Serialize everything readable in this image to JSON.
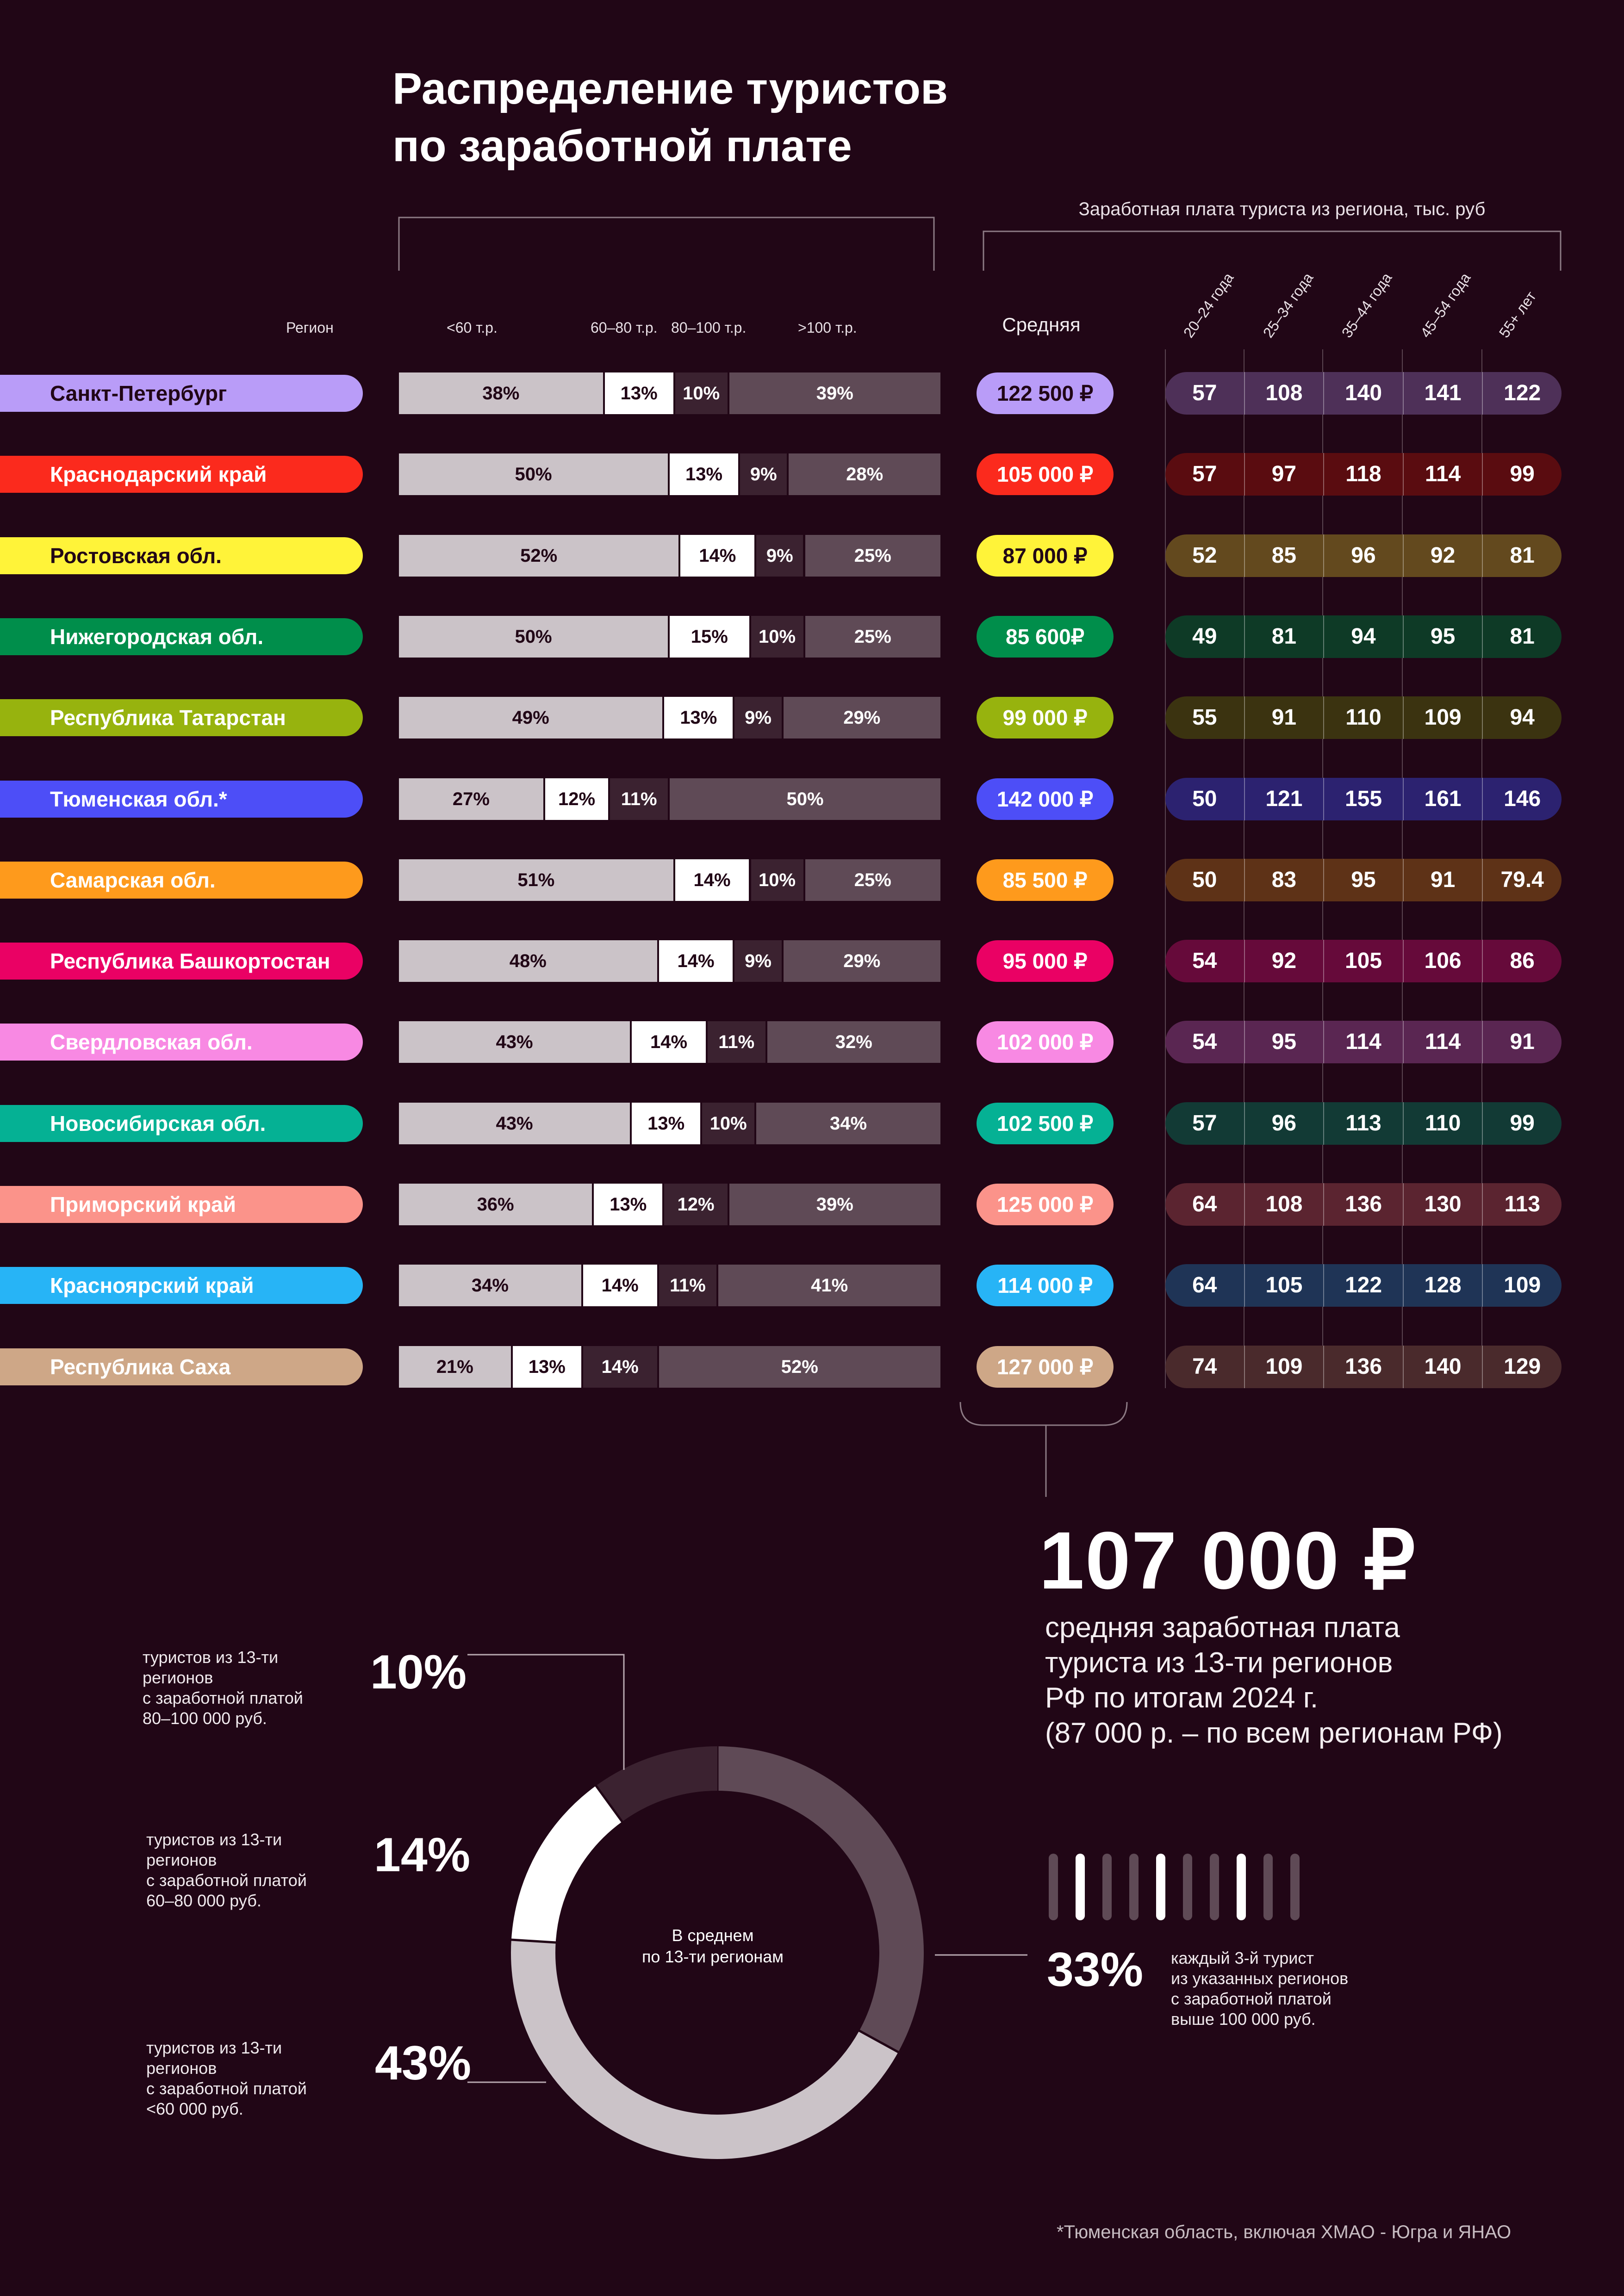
{
  "title": "Распределение туристов\nпо заработной плате",
  "header_salary": "Заработная плата туриста из региона, тыс. руб",
  "col_region": "Регион",
  "col_groups": [
    "<60 т.р.",
    "60–80 т.р.",
    "80–100 т.р.",
    ">100 т.р."
  ],
  "col_avg": "Средняя",
  "age_groups": [
    "20–24 года",
    "25–34 года",
    "35–44 года",
    "45–54 года",
    "55+ лет"
  ],
  "colors": {
    "background": "#210616",
    "seg_lt60": "#cbc3c8",
    "seg_60_80": "#ffffff",
    "seg_80_100": "#3b2230",
    "seg_gt100": "#5f4a56"
  },
  "chart_data": [
    {
      "type": "bar",
      "stacked": true,
      "orientation": "horizontal",
      "categories": [
        "Санкт-Петербург",
        "Краснодарский край",
        "Ростовская обл.",
        "Нижегородская обл.",
        "Республика Татарстан",
        "Тюменская обл.*",
        "Самарская обл.",
        "Республика Башкортостан",
        "Свердловская обл.",
        "Новосибирская обл.",
        "Приморский край",
        "Красноярский край",
        "Республика Саха"
      ],
      "series": [
        {
          "name": "<60 т.р.",
          "values": [
            38,
            50,
            52,
            50,
            49,
            27,
            51,
            48,
            43,
            43,
            36,
            34,
            21
          ]
        },
        {
          "name": "60–80 т.р.",
          "values": [
            13,
            13,
            14,
            15,
            13,
            12,
            14,
            14,
            14,
            13,
            13,
            14,
            13
          ]
        },
        {
          "name": "80–100 т.р.",
          "values": [
            10,
            9,
            9,
            10,
            9,
            11,
            10,
            9,
            11,
            10,
            12,
            11,
            14
          ]
        },
        {
          "name": ">100 т.р.",
          "values": [
            39,
            28,
            25,
            25,
            29,
            50,
            25,
            29,
            32,
            34,
            39,
            41,
            52
          ]
        }
      ],
      "unit": "%"
    },
    {
      "type": "table",
      "columns": [
        "Средняя",
        "20–24 года",
        "25–34 года",
        "35–44 года",
        "45–54 года",
        "55+ лет"
      ],
      "rows": [
        {
          "region": "Санкт-Петербург",
          "avg": "122 500 ₽",
          "ages": [
            "57",
            "108",
            "140",
            "141",
            "122"
          ],
          "color": "#b99cf8",
          "text_color": "#210616",
          "age_bg": "#4e3058"
        },
        {
          "region": "Краснодарский край",
          "avg": "105 000 ₽",
          "ages": [
            "57",
            "97",
            "118",
            "114",
            "99"
          ],
          "color": "#fb2a1d",
          "text_color": "#ffffff",
          "age_bg": "#5a0c10"
        },
        {
          "region": "Ростовская обл.",
          "avg": "87 000 ₽",
          "ages": [
            "52",
            "85",
            "96",
            "92",
            "81"
          ],
          "color": "#fff339",
          "text_color": "#210616",
          "age_bg": "#63491e"
        },
        {
          "region": "Нижегородская обл.",
          "avg": "85 600₽",
          "ages": [
            "49",
            "81",
            "94",
            "95",
            "81"
          ],
          "color": "#008e4b",
          "text_color": "#ffffff",
          "age_bg": "#0e3a26"
        },
        {
          "region": "Республика Татарстан",
          "avg": "99 000 ₽",
          "ages": [
            "55",
            "91",
            "110",
            "109",
            "94"
          ],
          "color": "#97b30e",
          "text_color": "#ffffff",
          "age_bg": "#3b3310"
        },
        {
          "region": "Тюменская обл.*",
          "avg": "142 000 ₽",
          "ages": [
            "50",
            "121",
            "155",
            "161",
            "146"
          ],
          "color": "#4d4ef7",
          "text_color": "#ffffff",
          "age_bg": "#2c2270"
        },
        {
          "region": "Самарская обл.",
          "avg": "85 500 ₽",
          "ages": [
            "50",
            "83",
            "95",
            "91",
            "79.4"
          ],
          "color": "#fe9a1c",
          "text_color": "#ffffff",
          "age_bg": "#5e3217"
        },
        {
          "region": "Республика Башкортостан",
          "avg": "95 000 ₽",
          "ages": [
            "54",
            "92",
            "105",
            "106",
            "86"
          ],
          "color": "#ea0164",
          "text_color": "#ffffff",
          "age_bg": "#660a3a"
        },
        {
          "region": "Свердловская обл.",
          "avg": "102 000 ₽",
          "ages": [
            "54",
            "95",
            "114",
            "114",
            "91"
          ],
          "color": "#f889e3",
          "text_color": "#ffffff",
          "age_bg": "#5a2652"
        },
        {
          "region": "Новосибирская обл.",
          "avg": "102 500 ₽",
          "ages": [
            "57",
            "96",
            "113",
            "110",
            "99"
          ],
          "color": "#05b194",
          "text_color": "#ffffff",
          "age_bg": "#123a35"
        },
        {
          "region": "Приморский край",
          "avg": "125 000 ₽",
          "ages": [
            "64",
            "108",
            "136",
            "130",
            "113"
          ],
          "color": "#fb938a",
          "text_color": "#ffffff",
          "age_bg": "#5b2430"
        },
        {
          "region": "Красноярский край",
          "avg": "114 000 ₽",
          "ages": [
            "64",
            "105",
            "122",
            "128",
            "109"
          ],
          "color": "#27b4f6",
          "text_color": "#ffffff",
          "age_bg": "#1f3456"
        },
        {
          "region": "Республика Саха",
          "avg": "127 000 ₽",
          "ages": [
            "74",
            "109",
            "136",
            "140",
            "129"
          ],
          "color": "#cea787",
          "text_color": "#ffffff",
          "age_bg": "#4a2a2c"
        }
      ]
    },
    {
      "type": "pie",
      "donut": true,
      "center_label": "В среднем\nпо 13-ти регионам",
      "slices": [
        {
          "label": "<60 000 руб.",
          "value": 43,
          "color": "#cbc3c8"
        },
        {
          "label": "60–80 000 руб.",
          "value": 14,
          "color": "#ffffff"
        },
        {
          "label": "80–100 000 руб.",
          "value": 10,
          "color": "#3b2230"
        },
        {
          "label": "выше 100 000 руб.",
          "value": 33,
          "color": "#5f4a56"
        }
      ]
    }
  ],
  "summary": {
    "big_value": "107 000 ₽",
    "big_desc": "средняя заработная плата\nтуриста из 13-ти регионов\nРФ по итогам 2024 г.\n(87 000 р. – по всем регионам РФ)"
  },
  "donut_notes": {
    "p10": "10%",
    "p10_text": "туристов из 13-ти\nрегионов\nс заработной платой\n80–100 000 руб.",
    "p14": "14%",
    "p14_text": "туристов из 13-ти\nрегионов\nс заработной платой\n60–80 000 руб.",
    "p43": "43%",
    "p43_text": "туристов из 13-ти\nрегионов\nс заработной платой\n<60 000 руб.",
    "p33": "33%",
    "p33_text": "каждый 3-й турист\nиз указанных регионов\nс заработной платой\nвыше 100 000 руб."
  },
  "footnote": "*Тюменская область, включая ХМАО - Югра и ЯНАО"
}
